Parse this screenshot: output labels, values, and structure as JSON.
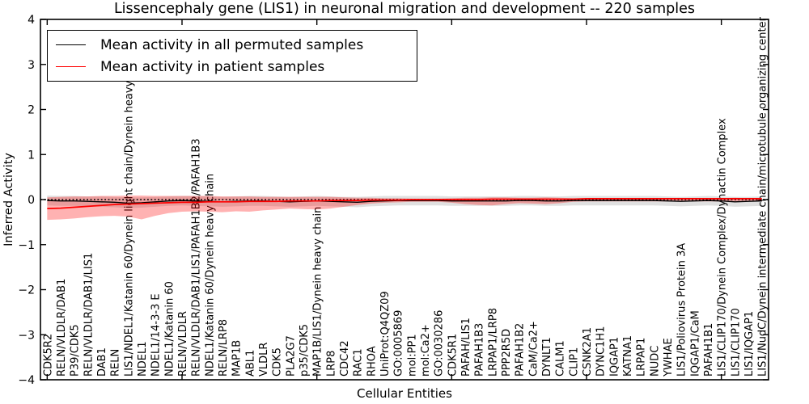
{
  "title": "Lissencephaly gene (LIS1) in neuronal migration and development -- 220 samples",
  "legend": {
    "entries": [
      {
        "label": "Mean activity in all permuted samples",
        "color": "#000000"
      },
      {
        "label": "Mean activity in patient samples",
        "color": "#ff0000"
      }
    ]
  },
  "colors": {
    "permuted_line": "#000000",
    "patient_line": "#ff0000",
    "permuted_band": "rgba(0,0,0,0.12)",
    "patient_band": "rgba(255,0,0,0.30)",
    "axis": "#000000",
    "background": "#ffffff"
  },
  "chart_data": {
    "type": "line",
    "title": "Lissencephaly gene (LIS1) in neuronal migration and development -- 220 samples",
    "xlabel": "Cellular Entities",
    "ylabel": "Inferred Activity",
    "ylim": [
      -4,
      4
    ],
    "yticks": [
      4,
      3,
      2,
      1,
      0,
      -1,
      -2,
      -3,
      -4
    ],
    "xtick_indices": [
      0,
      10,
      20,
      30,
      40,
      50
    ],
    "grid": false,
    "legend_position": "upper left",
    "zero_line": "dotted",
    "categories": [
      "CDK5R2",
      "RELN/VLDLR/DAB1",
      "P39/CDK5",
      "RELN/VLDLR/DAB1/LIS1",
      "DAB1",
      "RELN",
      "LIS1/NDEL1/Katanin 60/Dynein light chain/Dynein heavy chain",
      "NDEL1",
      "NDEL1/14-3-3 E",
      "NDEL1/Katanin 60",
      "RELN/VLDLR",
      "RELN/VLDLR/DAB1/LIS1/PAFAH1B2/PAFAH1B3",
      "NDEL1/Katanin 60/Dynein heavy chain",
      "RELN/LRP8",
      "MAP1B",
      "ABL1",
      "VLDLR",
      "CDK5",
      "PLA2G7",
      "p35/CDK5",
      "MAP1B/LIS1/Dynein heavy chain",
      "LRP8",
      "CDC42",
      "RAC1",
      "RHOA",
      "UniProt:Q4QZ09",
      "GO:0005869",
      "mol:PP1",
      "mol:Ca2+",
      "GO:0030286",
      "CDK5R1",
      "PAFAH/LIS1",
      "PAFAH1B3",
      "LRPAP1/LRP8",
      "PPP2R5D",
      "PAFAH1B2",
      "CaM/Ca2+",
      "DYNLT1",
      "CALM1",
      "CLIP1",
      "CSNK2A1",
      "DYNC1H1",
      "IQGAP1",
      "KATNA1",
      "LRPAP1",
      "NUDC",
      "YWHAE",
      "LIS1/Poliovirus Protein 3A",
      "IQGAP1/CaM",
      "PAFAH1B1",
      "LIS1/CLIP170/Dynein Complex/Dynactin Complex",
      "LIS1/CLIP170",
      "LIS1/IQGAP1",
      "LIS1/NudC/Dynein intermediate chain/microtubule organizing center"
    ],
    "series": [
      {
        "name": "Mean activity in all permuted samples",
        "color": "#000000",
        "values": [
          -0.02,
          -0.03,
          -0.03,
          -0.04,
          -0.05,
          -0.06,
          -0.08,
          -0.07,
          -0.05,
          -0.03,
          -0.02,
          -0.03,
          -0.04,
          -0.05,
          -0.04,
          -0.03,
          -0.03,
          -0.04,
          -0.05,
          -0.04,
          -0.03,
          -0.04,
          -0.05,
          -0.06,
          -0.04,
          -0.03,
          -0.02,
          -0.02,
          -0.02,
          -0.02,
          -0.03,
          -0.03,
          -0.03,
          -0.03,
          -0.03,
          -0.02,
          -0.02,
          -0.03,
          -0.03,
          -0.02,
          -0.02,
          -0.02,
          -0.02,
          -0.02,
          -0.02,
          -0.02,
          -0.03,
          -0.04,
          -0.03,
          -0.02,
          -0.03,
          -0.05,
          -0.04,
          -0.03
        ],
        "band_upper": [
          0.09,
          0.08,
          0.08,
          0.07,
          0.07,
          0.06,
          0.05,
          0.05,
          0.06,
          0.07,
          0.08,
          0.08,
          0.07,
          0.06,
          0.07,
          0.08,
          0.08,
          0.07,
          0.06,
          0.07,
          0.08,
          0.07,
          0.06,
          0.06,
          0.07,
          0.08,
          0.08,
          0.08,
          0.08,
          0.08,
          0.07,
          0.07,
          0.07,
          0.07,
          0.07,
          0.08,
          0.08,
          0.07,
          0.07,
          0.08,
          0.08,
          0.08,
          0.08,
          0.08,
          0.08,
          0.08,
          0.07,
          0.06,
          0.07,
          0.08,
          0.07,
          0.06,
          0.06,
          0.07
        ],
        "band_lower": [
          -0.13,
          -0.14,
          -0.14,
          -0.15,
          -0.16,
          -0.17,
          -0.19,
          -0.18,
          -0.16,
          -0.14,
          -0.13,
          -0.14,
          -0.15,
          -0.16,
          -0.15,
          -0.14,
          -0.14,
          -0.15,
          -0.16,
          -0.15,
          -0.14,
          -0.15,
          -0.16,
          -0.17,
          -0.15,
          -0.14,
          -0.13,
          -0.13,
          -0.13,
          -0.13,
          -0.14,
          -0.14,
          -0.14,
          -0.14,
          -0.14,
          -0.13,
          -0.13,
          -0.14,
          -0.14,
          -0.13,
          -0.13,
          -0.13,
          -0.13,
          -0.13,
          -0.13,
          -0.13,
          -0.14,
          -0.15,
          -0.14,
          -0.13,
          -0.14,
          -0.16,
          -0.15,
          -0.14
        ]
      },
      {
        "name": "Mean activity in patient samples",
        "color": "#ff0000",
        "values": [
          -0.2,
          -0.19,
          -0.17,
          -0.15,
          -0.13,
          -0.11,
          -0.1,
          -0.09,
          -0.08,
          -0.07,
          -0.06,
          -0.06,
          -0.05,
          -0.05,
          -0.05,
          -0.04,
          -0.04,
          -0.04,
          -0.03,
          -0.03,
          -0.03,
          -0.02,
          -0.02,
          -0.02,
          -0.01,
          -0.01,
          -0.01,
          0.0,
          0.0,
          0.0,
          0.0,
          0.0,
          0.0,
          0.01,
          0.01,
          0.01,
          0.01,
          0.01,
          0.01,
          0.01,
          0.02,
          0.02,
          0.02,
          0.02,
          0.02,
          0.02,
          0.02,
          0.02,
          0.02,
          0.02,
          0.02,
          0.02,
          0.02,
          0.02
        ],
        "band_upper": [
          0.05,
          0.06,
          0.07,
          0.07,
          0.08,
          0.08,
          0.09,
          0.09,
          0.08,
          0.08,
          0.08,
          0.08,
          0.08,
          0.07,
          0.07,
          0.07,
          0.06,
          0.06,
          0.06,
          0.06,
          0.06,
          0.06,
          0.05,
          0.04,
          0.04,
          0.03,
          0.03,
          0.02,
          0.02,
          0.02,
          0.03,
          0.04,
          0.04,
          0.05,
          0.05,
          0.04,
          0.04,
          0.05,
          0.04,
          0.03,
          0.03,
          0.03,
          0.03,
          0.03,
          0.03,
          0.03,
          0.03,
          0.03,
          0.03,
          0.03,
          0.03,
          0.04,
          0.03,
          0.03
        ],
        "band_lower": [
          -0.45,
          -0.44,
          -0.42,
          -0.39,
          -0.37,
          -0.36,
          -0.38,
          -0.44,
          -0.36,
          -0.3,
          -0.27,
          -0.26,
          -0.27,
          -0.28,
          -0.26,
          -0.27,
          -0.24,
          -0.22,
          -0.2,
          -0.21,
          -0.22,
          -0.2,
          -0.16,
          -0.12,
          -0.09,
          -0.07,
          -0.06,
          -0.05,
          -0.05,
          -0.05,
          -0.07,
          -0.1,
          -0.12,
          -0.13,
          -0.1,
          -0.08,
          -0.09,
          -0.1,
          -0.08,
          -0.05,
          -0.04,
          -0.04,
          -0.04,
          -0.04,
          -0.04,
          -0.04,
          -0.04,
          -0.04,
          -0.04,
          -0.04,
          -0.04,
          -0.05,
          -0.04,
          -0.04
        ]
      }
    ]
  }
}
